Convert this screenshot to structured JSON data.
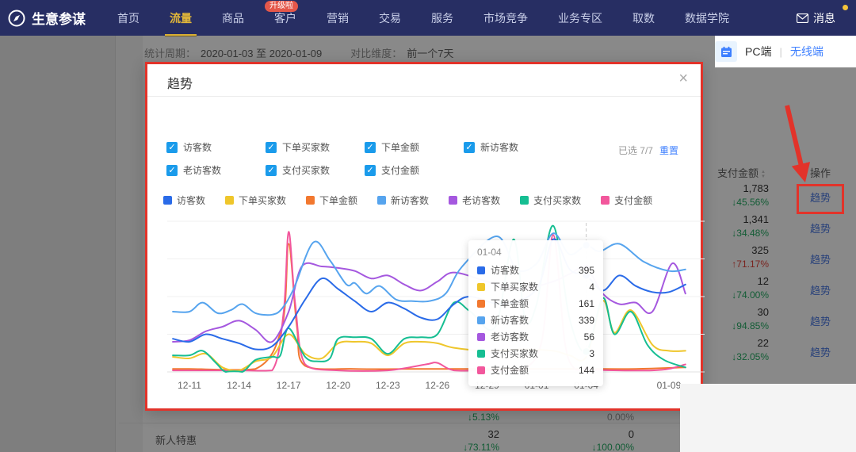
{
  "nav": {
    "brand": "生意参谋",
    "items": [
      {
        "label": "首页",
        "active": false
      },
      {
        "label": "流量",
        "active": true
      },
      {
        "label": "商品",
        "active": false
      },
      {
        "label": "客户",
        "active": false
      },
      {
        "label": "营销",
        "active": false
      },
      {
        "label": "交易",
        "active": false
      },
      {
        "label": "服务",
        "active": false
      },
      {
        "label": "市场竞争",
        "active": false
      },
      {
        "label": "业务专区",
        "active": false
      },
      {
        "label": "取数",
        "active": false
      },
      {
        "label": "数据学院",
        "active": false
      }
    ],
    "badge": "升级啦",
    "message": "消息"
  },
  "header": {
    "period_label": "统计周期：",
    "period_value": "2020-01-03 至 2020-01-09",
    "compare_label": "对比维度：",
    "compare_value": "前一个7天",
    "device_pc": "PC端",
    "device_sep": "|",
    "device_wireless": "无线端"
  },
  "modal": {
    "title": "趋势",
    "close": "×",
    "check_glyph": "✓",
    "checkboxes": [
      {
        "label": "访客数"
      },
      {
        "label": "下单买家数"
      },
      {
        "label": "下单金额"
      },
      {
        "label": "新访客数"
      },
      {
        "label": "老访客数"
      },
      {
        "label": "支付买家数"
      },
      {
        "label": "支付金额"
      }
    ],
    "selected_info": "已选 7/7",
    "reset": "重置",
    "legend": [
      {
        "label": "访客数",
        "color": "#2a6be8"
      },
      {
        "label": "下单买家数",
        "color": "#efc62b"
      },
      {
        "label": "下单金额",
        "color": "#f2782f"
      },
      {
        "label": "新访客数",
        "color": "#56a4ee"
      },
      {
        "label": "老访客数",
        "color": "#a558df"
      },
      {
        "label": "支付买家数",
        "color": "#16be92"
      },
      {
        "label": "支付金额",
        "color": "#f2579c"
      }
    ]
  },
  "chart_data": {
    "type": "line",
    "title": "趋势",
    "x_ticks": [
      {
        "label": "12-11",
        "d": 0
      },
      {
        "label": "12-14",
        "d": 3
      },
      {
        "label": "12-17",
        "d": 6
      },
      {
        "label": "12-20",
        "d": 9
      },
      {
        "label": "12-23",
        "d": 12
      },
      {
        "label": "12-26",
        "d": 15
      },
      {
        "label": "12-29",
        "d": 18
      },
      {
        "label": "01-01",
        "d": 21
      },
      {
        "label": "01-04",
        "d": 24
      },
      {
        "label": "01-09",
        "d": 29
      }
    ],
    "x_unit": "d = days since 12-11",
    "y_axis": "hidden; each series normalized, point values are 0-100 visual estimates",
    "grid": true,
    "legend_position": "top",
    "hover_date": "01-04",
    "hover_x_d": 24,
    "series": [
      {
        "name": "访客数",
        "color": "#2a6be8",
        "points": [
          [
            -1,
            22
          ],
          [
            0,
            20
          ],
          [
            1,
            25
          ],
          [
            2,
            22
          ],
          [
            3,
            19
          ],
          [
            4,
            15
          ],
          [
            5,
            17
          ],
          [
            6,
            30
          ],
          [
            7,
            48
          ],
          [
            8,
            62
          ],
          [
            9,
            55
          ],
          [
            10,
            47
          ],
          [
            11,
            40
          ],
          [
            12,
            46
          ],
          [
            13,
            42
          ],
          [
            14,
            36
          ],
          [
            15,
            35
          ],
          [
            16,
            45
          ],
          [
            17,
            50
          ],
          [
            19,
            45
          ],
          [
            21,
            55
          ],
          [
            22,
            88
          ],
          [
            23,
            68
          ],
          [
            24,
            64
          ],
          [
            25,
            54
          ],
          [
            26,
            64
          ],
          [
            27,
            57
          ],
          [
            28,
            53
          ],
          [
            29,
            53
          ],
          [
            30,
            58
          ]
        ]
      },
      {
        "name": "下单买家数",
        "color": "#efc62b",
        "points": [
          [
            -1,
            10
          ],
          [
            0,
            9
          ],
          [
            1,
            12
          ],
          [
            2,
            3
          ],
          [
            3,
            1
          ],
          [
            4,
            7
          ],
          [
            5,
            10
          ],
          [
            6,
            25
          ],
          [
            7,
            12
          ],
          [
            8,
            9
          ],
          [
            9,
            19
          ],
          [
            10,
            20
          ],
          [
            11,
            19
          ],
          [
            12,
            11
          ],
          [
            13,
            19
          ],
          [
            14,
            20
          ],
          [
            15,
            19
          ],
          [
            16,
            16
          ],
          [
            18,
            14
          ],
          [
            20,
            15
          ],
          [
            22,
            14
          ],
          [
            23,
            11
          ],
          [
            24,
            10
          ],
          [
            25,
            47
          ],
          [
            25.7,
            26
          ],
          [
            26.7,
            41
          ],
          [
            28,
            18
          ],
          [
            29,
            14
          ],
          [
            30,
            14
          ]
        ]
      },
      {
        "name": "下单金额",
        "color": "#f2782f",
        "points": [
          [
            -1,
            2
          ],
          [
            0,
            2
          ],
          [
            4,
            2
          ],
          [
            5.6,
            30
          ],
          [
            6,
            85
          ],
          [
            6.5,
            30
          ],
          [
            7,
            4
          ],
          [
            10,
            2
          ],
          [
            14,
            2
          ],
          [
            18,
            2
          ],
          [
            22,
            2
          ],
          [
            24,
            2
          ],
          [
            27,
            2
          ],
          [
            30,
            3
          ]
        ]
      },
      {
        "name": "新访客数",
        "color": "#56a4ee",
        "points": [
          [
            -1,
            40
          ],
          [
            0,
            40
          ],
          [
            0.8,
            46
          ],
          [
            1.7,
            39
          ],
          [
            2.5,
            41
          ],
          [
            3.2,
            45
          ],
          [
            4,
            39
          ],
          [
            5,
            38
          ],
          [
            5.6,
            42
          ],
          [
            6.3,
            55
          ],
          [
            7.5,
            86
          ],
          [
            8.5,
            74
          ],
          [
            9.5,
            58
          ],
          [
            10,
            59
          ],
          [
            10.7,
            52
          ],
          [
            11.5,
            57
          ],
          [
            12.5,
            48
          ],
          [
            13.5,
            47
          ],
          [
            14.5,
            47
          ],
          [
            15.5,
            52
          ],
          [
            16.5,
            70
          ],
          [
            18.6,
            90
          ],
          [
            19.8,
            68
          ],
          [
            21,
            72
          ],
          [
            22,
            92
          ],
          [
            23,
            78
          ],
          [
            24,
            84
          ],
          [
            24.8,
            80
          ],
          [
            26,
            85
          ],
          [
            27.5,
            73
          ],
          [
            29,
            67
          ],
          [
            30,
            68
          ]
        ]
      },
      {
        "name": "老访客数",
        "color": "#a558df",
        "points": [
          [
            -1,
            20
          ],
          [
            0,
            21
          ],
          [
            1,
            27
          ],
          [
            2,
            30
          ],
          [
            3,
            34
          ],
          [
            4,
            28
          ],
          [
            5,
            20
          ],
          [
            6,
            40
          ],
          [
            6.8,
            70
          ],
          [
            8,
            70
          ],
          [
            9,
            69
          ],
          [
            10,
            67
          ],
          [
            11,
            62
          ],
          [
            12,
            64
          ],
          [
            13,
            58
          ],
          [
            14,
            54
          ],
          [
            15,
            60
          ],
          [
            16,
            66
          ],
          [
            18,
            60
          ],
          [
            20,
            55
          ],
          [
            22,
            60
          ],
          [
            23,
            65
          ],
          [
            24,
            69
          ],
          [
            25,
            52
          ],
          [
            26,
            45
          ],
          [
            27,
            46
          ],
          [
            28,
            40
          ],
          [
            29.2,
            72
          ],
          [
            30,
            52
          ]
        ]
      },
      {
        "name": "支付买家数",
        "color": "#16be92",
        "points": [
          [
            -1,
            11
          ],
          [
            0,
            11
          ],
          [
            0.8,
            14
          ],
          [
            1.6,
            6
          ],
          [
            2.2,
            0
          ],
          [
            3.2,
            0
          ],
          [
            4,
            8
          ],
          [
            5,
            10
          ],
          [
            5.5,
            11
          ],
          [
            6,
            29
          ],
          [
            7,
            10
          ],
          [
            7.8,
            7
          ],
          [
            8.5,
            9
          ],
          [
            9,
            22
          ],
          [
            10,
            23
          ],
          [
            11,
            22
          ],
          [
            12,
            12
          ],
          [
            13,
            22
          ],
          [
            14,
            23
          ],
          [
            15,
            25
          ],
          [
            16,
            46
          ],
          [
            17,
            40
          ],
          [
            18.5,
            30
          ],
          [
            19.6,
            88
          ],
          [
            20.3,
            35
          ],
          [
            21,
            45
          ],
          [
            22,
            97
          ],
          [
            23,
            35
          ],
          [
            24,
            13.5
          ],
          [
            25,
            49
          ],
          [
            25.7,
            25
          ],
          [
            26.7,
            40
          ],
          [
            27.7,
            18
          ],
          [
            28.7,
            8
          ],
          [
            30,
            3
          ]
        ]
      },
      {
        "name": "支付金额",
        "color": "#f2579c",
        "points": [
          [
            -1,
            1
          ],
          [
            0,
            1
          ],
          [
            3,
            1
          ],
          [
            5,
            1
          ],
          [
            5.7,
            40
          ],
          [
            6,
            93
          ],
          [
            6.4,
            45
          ],
          [
            7,
            5
          ],
          [
            9,
            1
          ],
          [
            12,
            1
          ],
          [
            14.3,
            5
          ],
          [
            15,
            6
          ],
          [
            16,
            1
          ],
          [
            18,
            1
          ],
          [
            20,
            1
          ],
          [
            21.3,
            20
          ],
          [
            22,
            91
          ],
          [
            22.7,
            20
          ],
          [
            23.3,
            2
          ],
          [
            24,
            1.5
          ],
          [
            26,
            1
          ],
          [
            28,
            1
          ],
          [
            29,
            2
          ],
          [
            30,
            5
          ]
        ]
      }
    ],
    "draw_order": [
      2,
      6,
      1,
      5,
      4,
      0,
      3
    ],
    "hover_dots": [
      {
        "series": "新访客数",
        "d": 24,
        "v": 84
      },
      {
        "series": "老访客数",
        "d": 24,
        "v": 69
      },
      {
        "series": "访客数",
        "d": 24,
        "v": 64
      },
      {
        "series": "支付买家数",
        "d": 24,
        "v": 13.5
      },
      {
        "series": "支付金额",
        "d": 24,
        "v": 1.5
      }
    ],
    "tooltip": {
      "date": "01-04",
      "rows": [
        {
          "name": "访客数",
          "value": "395",
          "color": "#2a6be8"
        },
        {
          "name": "下单买家数",
          "value": "4",
          "color": "#efc62b"
        },
        {
          "name": "下单金额",
          "value": "161",
          "color": "#f2782f"
        },
        {
          "name": "新访客数",
          "value": "339",
          "color": "#56a4ee"
        },
        {
          "name": "老访客数",
          "value": "56",
          "color": "#a558df"
        },
        {
          "name": "支付买家数",
          "value": "3",
          "color": "#16be92"
        },
        {
          "name": "支付金额",
          "value": "144",
          "color": "#f2579c"
        }
      ]
    }
  },
  "table": {
    "col_amount": "支付金额",
    "col_action": "操作",
    "action_label": "趋势",
    "rows": [
      {
        "value": "1,783",
        "delta": "↓45.56%",
        "delta_color": "#12a557"
      },
      {
        "value": "1,341",
        "delta": "↓34.48%",
        "delta_color": "#12a557"
      },
      {
        "value": "325",
        "delta": "↑71.17%",
        "delta_color": "#e0342b"
      },
      {
        "value": "12",
        "delta": "↓74.00%",
        "delta_color": "#12a557"
      },
      {
        "value": "30",
        "delta": "↓94.85%",
        "delta_color": "#12a557"
      },
      {
        "value": "22",
        "delta": "↓32.05%",
        "delta_color": "#12a557"
      }
    ]
  },
  "bottom": {
    "partial_col1": "↓5.13%",
    "partial_col2": "0.00%",
    "row_label": "新人特惠",
    "col1_value": "32",
    "col1_delta": "↓73.11%",
    "col2_value": "0",
    "col2_delta": "↓100.00%"
  }
}
